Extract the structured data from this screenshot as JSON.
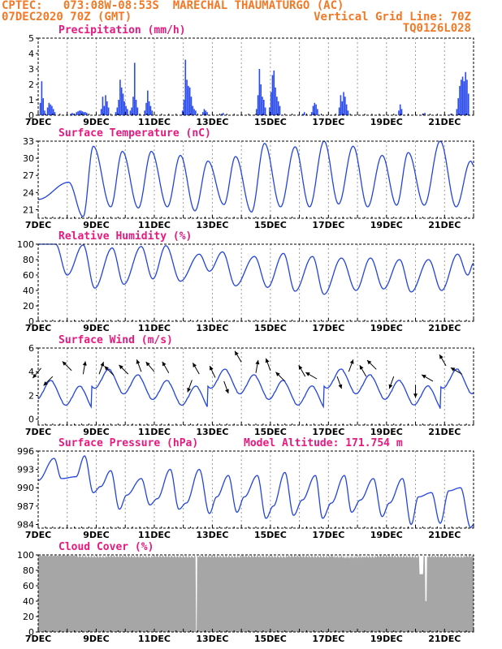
{
  "header": {
    "line1": "CPTEC:   073:08W-08:53S  MARECHAL THAUMATURGO (AC)",
    "line2": "07DEC2020 70Z (GMT)",
    "right1": "Vertical Grid Line: 70Z",
    "right2": "TQ0126L028"
  },
  "x_axis": {
    "days": [
      7,
      22
    ],
    "labels": [
      "7DEC",
      "9DEC",
      "11DEC",
      "13DEC",
      "15DEC",
      "17DEC",
      "19DEC",
      "21DEC"
    ],
    "label_days": [
      7,
      9,
      11,
      13,
      15,
      17,
      19,
      21
    ],
    "grid_days": [
      8,
      9,
      10,
      11,
      12,
      13,
      14,
      15,
      16,
      17,
      18,
      19,
      20,
      21
    ]
  },
  "chart_data": [
    {
      "type": "bar",
      "title": "Precipitation (mm/h)",
      "ylim": [
        0,
        5
      ],
      "yticks": [
        0,
        1,
        2,
        3,
        4,
        5
      ],
      "events": [
        {
          "x": 7.05,
          "heights": [
            0.8,
            2.2,
            1.1,
            0.3
          ]
        },
        {
          "x": 7.3,
          "heights": [
            0.5,
            0.8,
            0.7,
            0.6,
            0.4,
            0.2
          ]
        },
        {
          "x": 8.1,
          "heights": [
            0.1,
            0.15,
            0.1
          ]
        },
        {
          "x": 8.3,
          "heights": [
            0.2,
            0.25,
            0.3,
            0.3,
            0.25,
            0.2,
            0.2,
            0.15
          ]
        },
        {
          "x": 9.15,
          "heights": [
            0.4,
            1.2,
            0.6,
            1.3,
            0.9,
            0.5
          ]
        },
        {
          "x": 9.65,
          "heights": [
            0.2,
            0.5,
            1.0,
            2.3,
            1.8,
            1.4,
            0.9,
            0.6,
            0.4
          ]
        },
        {
          "x": 10.15,
          "heights": [
            0.3,
            0.5,
            1.2,
            3.4,
            1.0,
            0.5
          ]
        },
        {
          "x": 10.65,
          "heights": [
            0.3,
            0.8,
            1.6,
            0.9,
            0.6,
            0.3
          ]
        },
        {
          "x": 11.95,
          "heights": [
            0.3,
            1.0,
            3.6,
            2.3,
            1.9,
            1.8,
            1.2,
            0.6,
            0.4,
            0.3
          ]
        },
        {
          "x": 12.65,
          "heights": [
            0.2,
            0.4,
            0.3,
            0.2
          ]
        },
        {
          "x": 13.3,
          "heights": [
            0.1,
            0.15
          ]
        },
        {
          "x": 14.5,
          "heights": [
            0.4,
            1.3,
            3.0,
            2.0,
            1.2,
            1.0,
            0.5
          ]
        },
        {
          "x": 14.95,
          "heights": [
            0.5,
            1.5,
            2.6,
            2.9,
            1.8,
            1.2,
            0.9,
            0.6
          ]
        },
        {
          "x": 16.1,
          "heights": [
            0.1,
            0.2
          ]
        },
        {
          "x": 16.4,
          "heights": [
            0.2,
            0.6,
            0.8,
            0.7,
            0.4
          ]
        },
        {
          "x": 17.35,
          "heights": [
            0.5,
            1.3,
            0.9,
            1.5,
            1.2,
            0.7,
            0.3
          ]
        },
        {
          "x": 19.4,
          "heights": [
            0.3,
            0.7,
            0.4
          ]
        },
        {
          "x": 20.25,
          "heights": [
            0.1,
            0.15
          ]
        },
        {
          "x": 21.2,
          "heights": [
            0.1
          ]
        },
        {
          "x": 21.4,
          "heights": [
            0.4,
            1.1,
            1.9,
            2.3,
            2.5,
            2.2,
            2.8,
            2.3,
            1.4
          ]
        }
      ]
    },
    {
      "type": "line",
      "title": "Surface Temperature (nC)",
      "ylim": [
        19.5,
        33
      ],
      "yticks": [
        21,
        24,
        27,
        30,
        33
      ],
      "peaks": [
        [
          7.0,
          22.8
        ],
        [
          8.05,
          25.8
        ],
        [
          8.55,
          19.8
        ],
        [
          8.9,
          32.1
        ],
        [
          9.5,
          21.5
        ],
        [
          9.9,
          31.2
        ],
        [
          10.45,
          21.3
        ],
        [
          10.9,
          31.2
        ],
        [
          11.45,
          21.5
        ],
        [
          11.9,
          30.5
        ],
        [
          12.4,
          20.8
        ],
        [
          12.85,
          29.5
        ],
        [
          13.4,
          21.9
        ],
        [
          13.8,
          30.3
        ],
        [
          14.35,
          20.6
        ],
        [
          14.8,
          32.6
        ],
        [
          15.35,
          21.5
        ],
        [
          15.85,
          32.0
        ],
        [
          16.35,
          21.5
        ],
        [
          16.85,
          33.0
        ],
        [
          17.35,
          22.0
        ],
        [
          17.85,
          32.1
        ],
        [
          18.35,
          21.5
        ],
        [
          18.85,
          30.5
        ],
        [
          19.35,
          21.8
        ],
        [
          19.75,
          31.0
        ],
        [
          20.3,
          21.8
        ],
        [
          20.85,
          33.0
        ],
        [
          21.4,
          21.5
        ],
        [
          21.9,
          29.5
        ],
        [
          22.0,
          28.8
        ]
      ]
    },
    {
      "type": "line",
      "title": "Relative Humidity (%)",
      "ylim": [
        0,
        100
      ],
      "yticks": [
        0,
        20,
        40,
        60,
        80,
        100
      ],
      "peaks": [
        [
          7.0,
          100
        ],
        [
          7.6,
          100
        ],
        [
          8.0,
          60
        ],
        [
          8.55,
          99
        ],
        [
          8.95,
          43
        ],
        [
          9.55,
          95
        ],
        [
          9.95,
          48
        ],
        [
          10.55,
          97
        ],
        [
          10.95,
          55
        ],
        [
          11.4,
          98
        ],
        [
          11.9,
          52
        ],
        [
          12.55,
          87
        ],
        [
          12.9,
          65
        ],
        [
          13.35,
          90
        ],
        [
          13.8,
          46
        ],
        [
          14.45,
          84
        ],
        [
          14.9,
          44
        ],
        [
          15.45,
          88
        ],
        [
          15.85,
          39
        ],
        [
          16.45,
          84
        ],
        [
          16.85,
          35
        ],
        [
          17.45,
          82
        ],
        [
          17.95,
          40
        ],
        [
          18.45,
          82
        ],
        [
          18.9,
          42
        ],
        [
          19.45,
          80
        ],
        [
          19.85,
          38
        ],
        [
          20.45,
          80
        ],
        [
          20.9,
          40
        ],
        [
          21.45,
          87
        ],
        [
          21.8,
          60
        ],
        [
          22.0,
          75
        ]
      ]
    },
    {
      "type": "line",
      "title": "Surface Wind (m/s)",
      "ylim": [
        -0.5,
        6
      ],
      "yticks": [
        0,
        2,
        4,
        6
      ],
      "arrows": [
        [
          7.1,
          4.3,
          220
        ],
        [
          7.5,
          3.6,
          225
        ],
        [
          8.15,
          4.1,
          315
        ],
        [
          8.55,
          3.8,
          10
        ],
        [
          9.1,
          3.8,
          20
        ],
        [
          9.6,
          3.7,
          315
        ],
        [
          10.1,
          3.8,
          315
        ],
        [
          10.55,
          4.0,
          340
        ],
        [
          11.0,
          4.0,
          320
        ],
        [
          11.5,
          3.9,
          330
        ],
        [
          12.3,
          3.3,
          200
        ],
        [
          12.55,
          3.8,
          330
        ],
        [
          13.1,
          3.5,
          335
        ],
        [
          13.4,
          3.2,
          160
        ],
        [
          14.0,
          4.8,
          330
        ],
        [
          14.5,
          3.9,
          10
        ],
        [
          15.0,
          4.1,
          340
        ],
        [
          15.5,
          3.2,
          315
        ],
        [
          16.2,
          3.6,
          330
        ],
        [
          16.6,
          3.4,
          300
        ],
        [
          17.3,
          3.6,
          160
        ],
        [
          17.7,
          4.0,
          20
        ],
        [
          18.3,
          3.6,
          330
        ],
        [
          18.65,
          4.2,
          315
        ],
        [
          19.25,
          3.6,
          200
        ],
        [
          20.0,
          2.9,
          180
        ],
        [
          20.6,
          3.2,
          300
        ],
        [
          21.05,
          4.5,
          330
        ],
        [
          21.6,
          3.8,
          300
        ]
      ]
    },
    {
      "type": "line",
      "title": "Surface Pressure (hPa)",
      "ylim": [
        983.4,
        996
      ],
      "yticks": [
        984,
        987,
        990,
        993,
        996
      ],
      "annotation": "Model Altitude: 171.754 m",
      "peaks": [
        [
          7.0,
          991.2
        ],
        [
          7.55,
          994.8
        ],
        [
          7.8,
          991.5
        ],
        [
          8.3,
          991.8
        ],
        [
          8.6,
          995.2
        ],
        [
          8.9,
          989.2
        ],
        [
          9.15,
          990.2
        ],
        [
          9.5,
          992.8
        ],
        [
          9.8,
          986.5
        ],
        [
          10.05,
          988.8
        ],
        [
          10.55,
          991.5
        ],
        [
          10.85,
          987.2
        ],
        [
          11.1,
          988.2
        ],
        [
          11.55,
          993.0
        ],
        [
          11.85,
          986.5
        ],
        [
          12.1,
          987.5
        ],
        [
          12.55,
          993.0
        ],
        [
          12.9,
          985.8
        ],
        [
          13.15,
          988.5
        ],
        [
          13.55,
          992.0
        ],
        [
          13.85,
          986.0
        ],
        [
          14.1,
          988.5
        ],
        [
          14.55,
          992.0
        ],
        [
          14.85,
          985.0
        ],
        [
          15.1,
          987.0
        ],
        [
          15.5,
          992.5
        ],
        [
          15.8,
          985.5
        ],
        [
          16.1,
          988.0
        ],
        [
          16.55,
          992.0
        ],
        [
          16.8,
          985.0
        ],
        [
          17.1,
          987.5
        ],
        [
          17.55,
          992.0
        ],
        [
          17.8,
          986.0
        ],
        [
          18.1,
          988.0
        ],
        [
          18.55,
          991.5
        ],
        [
          18.85,
          985.3
        ],
        [
          19.1,
          987.5
        ],
        [
          19.55,
          991.5
        ],
        [
          19.85,
          984.0
        ],
        [
          20.1,
          988.5
        ],
        [
          20.55,
          989.2
        ],
        [
          20.85,
          984.2
        ],
        [
          21.15,
          989.5
        ],
        [
          21.55,
          990.0
        ],
        [
          21.9,
          983.5
        ],
        [
          22.0,
          984.0
        ]
      ]
    },
    {
      "type": "area",
      "title": "Cloud Cover (%)",
      "ylim": [
        0,
        100
      ],
      "yticks": [
        0,
        20,
        40,
        60,
        80,
        100
      ],
      "fill_color": "#a6a6a6",
      "dips": [
        [
          12.45,
          0.05,
          0
        ],
        [
          20.35,
          0.06,
          40
        ],
        [
          20.2,
          0.15,
          75
        ]
      ]
    }
  ]
}
